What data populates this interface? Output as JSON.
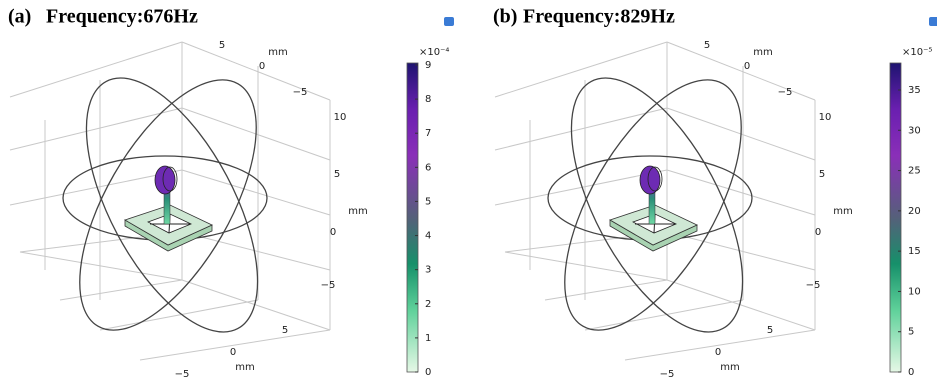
{
  "panels": [
    {
      "label": "(a)",
      "title": "Frequency:676Hz",
      "axis_labels": [
        "5",
        "mm",
        "0",
        "−5",
        "10",
        "5",
        "mm",
        "0",
        "−5",
        "5",
        "0",
        "mm",
        "−5"
      ],
      "colorbar": {
        "multiplier": "×10⁻⁴",
        "ticks": [
          0,
          1,
          2,
          3,
          4,
          5,
          6,
          7,
          8,
          9
        ]
      }
    },
    {
      "label": "(b)",
      "title": "Frequency:829Hz",
      "axis_labels": [
        "5",
        "mm",
        "0",
        "−5",
        "10",
        "5",
        "mm",
        "0",
        "−5",
        "5",
        "0",
        "mm",
        "−5"
      ],
      "colorbar": {
        "multiplier": "×10⁻⁵",
        "ticks": [
          0,
          5,
          10,
          15,
          20,
          25,
          30,
          35
        ]
      }
    }
  ]
}
